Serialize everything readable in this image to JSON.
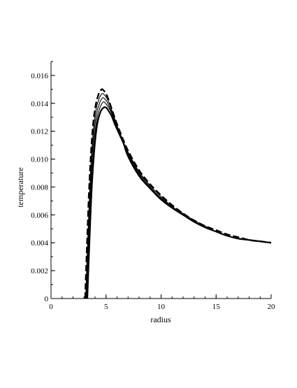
{
  "chart_data": {
    "type": "line",
    "title": "",
    "xlabel": "radius",
    "ylabel": "temperature",
    "xlim": [
      0,
      20
    ],
    "ylim": [
      0,
      0.017
    ],
    "x_ticks": [
      0,
      5,
      10,
      15,
      20
    ],
    "x_tick_labels": [
      "0",
      "5",
      "10",
      "15",
      "20"
    ],
    "x_minor_step": 1,
    "y_ticks": [
      0,
      0.002,
      0.004,
      0.006,
      0.008,
      0.01,
      0.012,
      0.014,
      0.016
    ],
    "y_tick_labels": [
      "0",
      "0.002",
      "0.004",
      "0.006",
      "0.008",
      "0.010",
      "0.012",
      "0.014",
      "0.016"
    ],
    "y_minor_step": 0.001,
    "grid": false,
    "legend": "none",
    "series": [
      {
        "style": "dashed",
        "stroke_width": 2.4,
        "x": [
          3.1,
          3.3,
          3.5,
          3.75,
          4.0,
          4.3,
          4.6,
          4.8,
          5.0,
          5.3,
          5.6,
          6.0,
          6.5,
          7.0,
          8.0,
          9.0,
          10.0,
          11.0,
          12.0,
          13.0,
          14.0,
          15.0,
          16.0,
          17.0,
          18.0,
          19.0,
          20.0
        ],
        "y": [
          0,
          0.0045,
          0.0085,
          0.0118,
          0.0136,
          0.0146,
          0.015,
          0.0149,
          0.0147,
          0.0141,
          0.0134,
          0.0125,
          0.0115,
          0.0106,
          0.0092,
          0.0082,
          0.0074,
          0.0067,
          0.0061,
          0.0056,
          0.0052,
          0.0049,
          0.0046,
          0.0044,
          0.0042,
          0.0041,
          0.004
        ]
      },
      {
        "style": "solid",
        "stroke_width": 1.1,
        "x": [
          3.15,
          3.35,
          3.55,
          3.8,
          4.05,
          4.35,
          4.65,
          4.85,
          5.05,
          5.35,
          5.65,
          6.05,
          6.5,
          7.0,
          8.0,
          9.0,
          10.0,
          11.0,
          12.0,
          13.0,
          14.0,
          15.0,
          16.0,
          17.0,
          18.0,
          19.0,
          20.0
        ],
        "y": [
          0,
          0.0045,
          0.0084,
          0.0116,
          0.0134,
          0.0143,
          0.0147,
          0.0146,
          0.0144,
          0.0139,
          0.0132,
          0.0123,
          0.0114,
          0.0105,
          0.0091,
          0.0081,
          0.0073,
          0.0066,
          0.0061,
          0.0056,
          0.0052,
          0.0048,
          0.0045,
          0.0043,
          0.0042,
          0.0041,
          0.004
        ]
      },
      {
        "style": "solid",
        "stroke_width": 1.1,
        "x": [
          3.2,
          3.4,
          3.6,
          3.85,
          4.1,
          4.4,
          4.7,
          4.9,
          5.1,
          5.4,
          5.7,
          6.1,
          6.5,
          7.0,
          8.0,
          9.0,
          10.0,
          11.0,
          12.0,
          13.0,
          14.0,
          15.0,
          16.0,
          17.0,
          18.0,
          19.0,
          20.0
        ],
        "y": [
          0,
          0.0044,
          0.0083,
          0.0114,
          0.0131,
          0.014,
          0.0144,
          0.0143,
          0.0141,
          0.0136,
          0.013,
          0.0121,
          0.0113,
          0.0104,
          0.009,
          0.008,
          0.0072,
          0.0066,
          0.006,
          0.0055,
          0.0051,
          0.0048,
          0.0045,
          0.0043,
          0.0042,
          0.0041,
          0.004
        ]
      },
      {
        "style": "solid",
        "stroke_width": 1.1,
        "x": [
          3.25,
          3.45,
          3.65,
          3.9,
          4.15,
          4.45,
          4.75,
          4.95,
          5.15,
          5.45,
          5.75,
          6.15,
          6.55,
          7.0,
          8.0,
          9.0,
          10.0,
          11.0,
          12.0,
          13.0,
          14.0,
          15.0,
          16.0,
          17.0,
          18.0,
          19.0,
          20.0
        ],
        "y": [
          0,
          0.0043,
          0.0081,
          0.0111,
          0.0128,
          0.0137,
          0.0141,
          0.014,
          0.0138,
          0.0134,
          0.0128,
          0.012,
          0.0112,
          0.0103,
          0.0089,
          0.0079,
          0.0072,
          0.0065,
          0.006,
          0.0055,
          0.0051,
          0.0048,
          0.0045,
          0.0043,
          0.0042,
          0.0041,
          0.004
        ]
      },
      {
        "style": "solid",
        "stroke_width": 2.2,
        "x": [
          3.3,
          3.5,
          3.7,
          3.95,
          4.2,
          4.5,
          4.8,
          5.0,
          5.2,
          5.5,
          5.8,
          6.2,
          6.6,
          7.0,
          8.0,
          9.0,
          10.0,
          11.0,
          12.0,
          13.0,
          14.0,
          15.0,
          16.0,
          17.0,
          18.0,
          19.0,
          20.0
        ],
        "y": [
          0,
          0.0042,
          0.0079,
          0.0108,
          0.0125,
          0.0134,
          0.0137,
          0.0137,
          0.0135,
          0.0131,
          0.0125,
          0.0118,
          0.0111,
          0.0102,
          0.0088,
          0.0079,
          0.0071,
          0.0065,
          0.006,
          0.0055,
          0.0051,
          0.0048,
          0.0045,
          0.0043,
          0.0042,
          0.0041,
          0.004
        ]
      }
    ]
  }
}
